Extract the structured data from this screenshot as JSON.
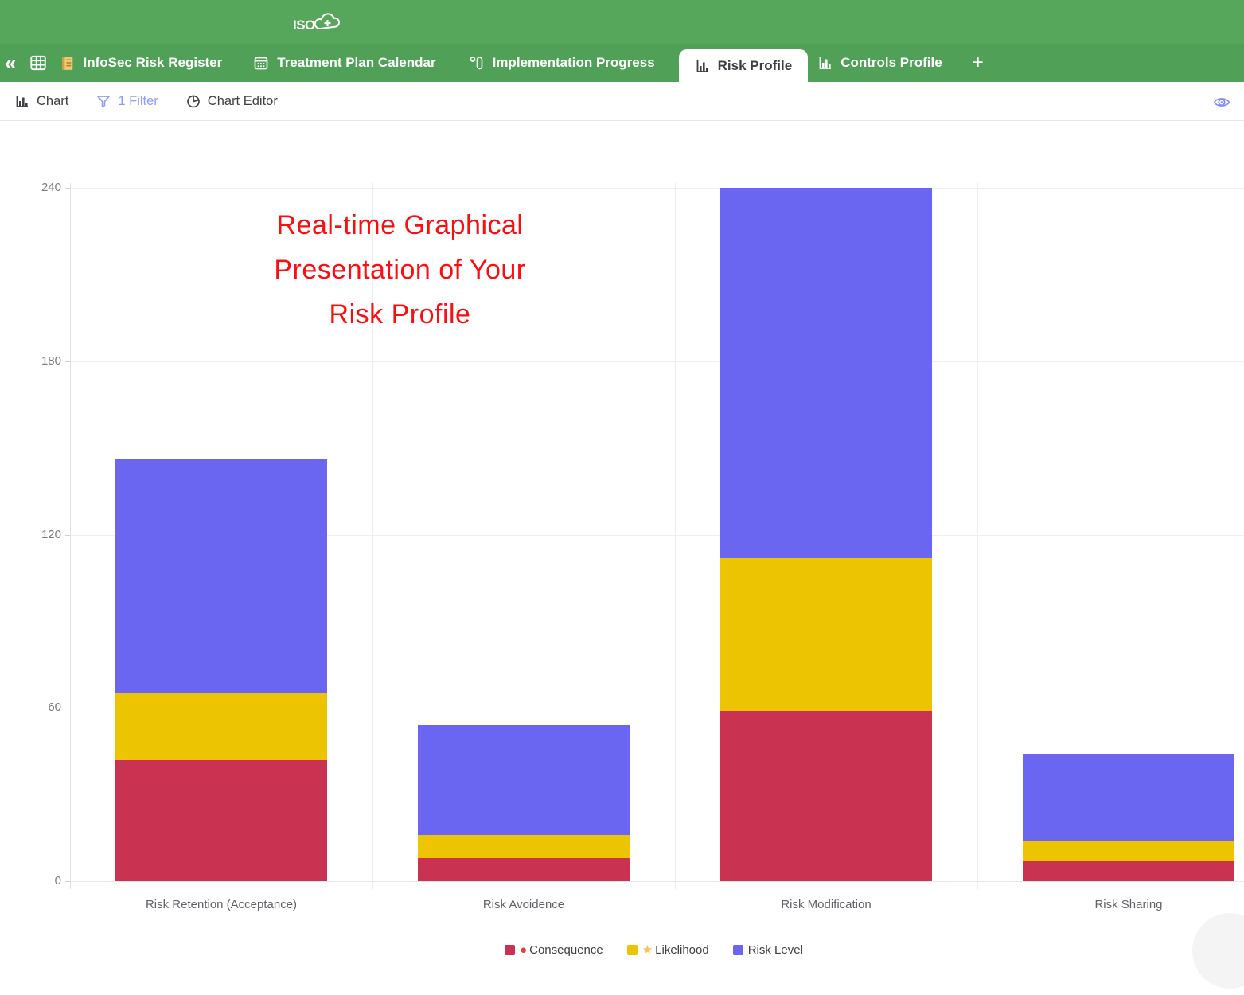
{
  "header": {
    "logo": "ISO",
    "logo_plus": "+"
  },
  "tab_bar": {
    "collapse_glyph": "«",
    "add_tab_glyph": "+",
    "tabs": [
      {
        "label": "InfoSec Risk Register",
        "active": false
      },
      {
        "label": "Treatment Plan Calendar",
        "active": false
      },
      {
        "label": "Implementation Progress",
        "active": false
      },
      {
        "label": "Risk Profile",
        "active": true
      },
      {
        "label": "Controls Profile",
        "active": false
      }
    ]
  },
  "toolbar": {
    "chart": "Chart",
    "filter": "1 Filter",
    "chart_editor": "Chart Editor"
  },
  "annotation": {
    "lines": [
      "Real-time Graphical",
      "Presentation of Your",
      "Risk Profile"
    ],
    "color": "#fb0d10"
  },
  "chart_data": {
    "type": "bar",
    "stacked": true,
    "title": "",
    "xlabel": "",
    "ylabel": "",
    "categories": [
      "Risk Retention (Acceptance)",
      "Risk Avoidence",
      "Risk Modification",
      "Risk Sharing"
    ],
    "series": [
      {
        "name": "Consequence",
        "glyph": "●",
        "glyph_color": "#e8402f",
        "color": "#c93351",
        "values": [
          42,
          8,
          59,
          7
        ]
      },
      {
        "name": "Likelihood",
        "glyph": "★",
        "glyph_color": "#f3c73e",
        "color": "#edc402",
        "values": [
          23,
          8,
          53,
          7
        ]
      },
      {
        "name": "Risk Level",
        "glyph": "",
        "glyph_color": "",
        "color": "#6a66f1",
        "values": [
          81,
          38,
          128,
          30
        ]
      }
    ],
    "stack_totals": [
      146,
      54,
      240,
      44
    ],
    "ylim": [
      0,
      240
    ],
    "yticks": [
      0,
      60,
      120,
      180,
      240
    ],
    "grid": true,
    "legend_position": "bottom"
  },
  "colors": {
    "header_green": "#56a65c",
    "tab_green": "#51a057",
    "active_tab_text": "#3d4043",
    "filter_accent": "#8c9df8",
    "eye_accent": "#858cf0"
  }
}
